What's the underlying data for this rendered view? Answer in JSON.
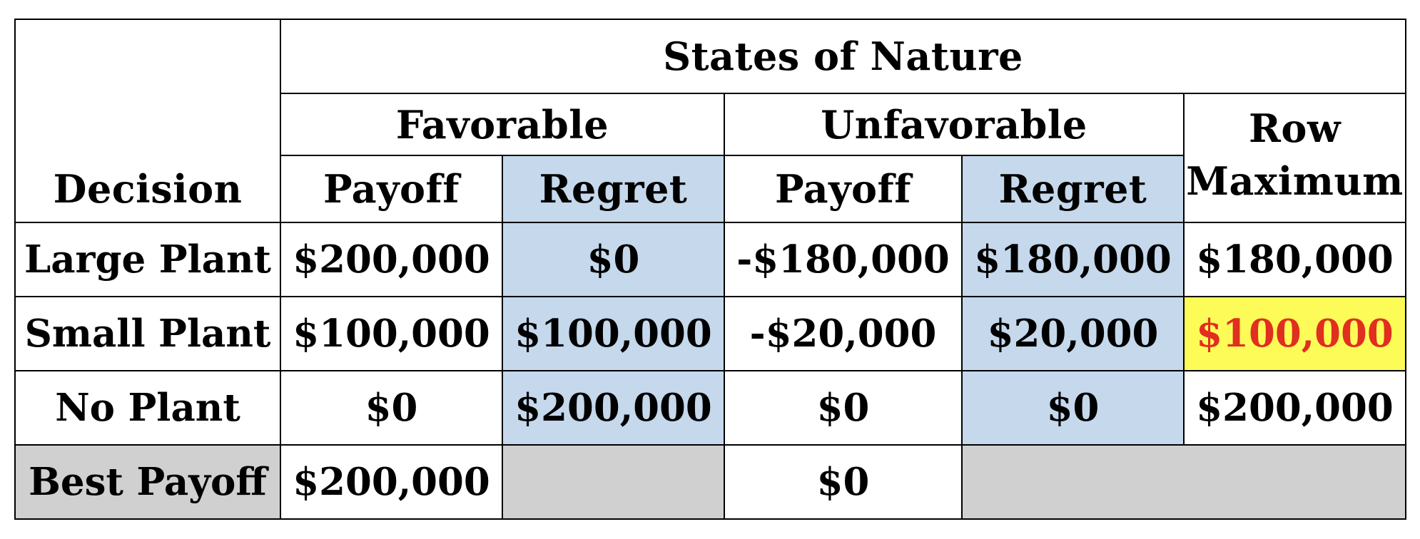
{
  "table": {
    "header": {
      "states_of_nature": "States of Nature",
      "favorable": "Favorable",
      "unfavorable": "Unfavorable",
      "row_maximum_line1": "Row",
      "row_maximum_line2": "Maximum",
      "decision": "Decision",
      "payoff": "Payoff",
      "regret": "Regret"
    },
    "rows": [
      {
        "decision": "Large Plant",
        "fav_payoff": "$200,000",
        "fav_regret": "$0",
        "unfav_payoff": "-$180,000",
        "unfav_regret": "$180,000",
        "row_max": "$180,000"
      },
      {
        "decision": "Small Plant",
        "fav_payoff": "$100,000",
        "fav_regret": "$100,000",
        "unfav_payoff": "-$20,000",
        "unfav_regret": "$20,000",
        "row_max": "$100,000"
      },
      {
        "decision": "No Plant",
        "fav_payoff": "$0",
        "fav_regret": "$200,000",
        "unfav_payoff": "$0",
        "unfav_regret": "$0",
        "row_max": "$200,000"
      }
    ],
    "best_payoff": {
      "label": "Best Payoff",
      "favorable": "$200,000",
      "unfavorable": "$0"
    },
    "highlight": {
      "selected_row_max": "Small Plant",
      "fill_color": "#fdfb57",
      "text_color": "#e02e1f",
      "regret_column_color": "#c5d8ec",
      "best_payoff_row_color": "#d1d0d1"
    }
  }
}
